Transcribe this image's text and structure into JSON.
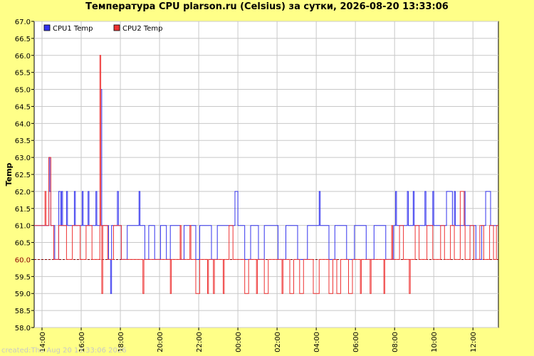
{
  "title": "Температура CPU plarson.ru (Celsius) за сутки, 2026-08-20 13:33:06",
  "footer": "created:Thu Aug 20 13:33:06 2026",
  "colors": {
    "background": "#ffff88",
    "plot_bg": "#ffffff",
    "grid": "#c8c8c8",
    "cpu1": "#3333ee",
    "cpu2": "#ee3333",
    "baseline": "#8b0000",
    "axis_text": "#000000"
  },
  "chart_data": {
    "type": "line",
    "ylabel": "Temp",
    "ylim": [
      58.0,
      67.0
    ],
    "yticks": [
      "58.0",
      "58.5",
      "59.0",
      "59.5",
      "60.0",
      "60.5",
      "61.0",
      "61.5",
      "62.0",
      "62.5",
      "63.0",
      "63.5",
      "64.0",
      "64.5",
      "65.0",
      "65.5",
      "66.0",
      "66.5",
      "67.0"
    ],
    "xrange_hours": [
      13.6,
      37.3
    ],
    "xticks": [
      {
        "label": "14:00",
        "h": 14
      },
      {
        "label": "16:00",
        "h": 16
      },
      {
        "label": "18:00",
        "h": 18
      },
      {
        "label": "20:00",
        "h": 20
      },
      {
        "label": "22:00",
        "h": 22
      },
      {
        "label": "00:00",
        "h": 24
      },
      {
        "label": "02:00",
        "h": 26
      },
      {
        "label": "04:00",
        "h": 28
      },
      {
        "label": "06:00",
        "h": 30
      },
      {
        "label": "08:00",
        "h": 32
      },
      {
        "label": "10:00",
        "h": 34
      },
      {
        "label": "12:00",
        "h": 36
      }
    ],
    "grid": true,
    "legend": "top-left",
    "baseline_value": 60.0,
    "series": [
      {
        "name": "CPU1 Temp",
        "color": "#3333ee",
        "points": [
          [
            13.6,
            61
          ],
          [
            14.3,
            61
          ],
          [
            14.35,
            63
          ],
          [
            14.4,
            62
          ],
          [
            14.45,
            61
          ],
          [
            14.6,
            61
          ],
          [
            14.65,
            60
          ],
          [
            14.8,
            60
          ],
          [
            14.85,
            62
          ],
          [
            14.95,
            61
          ],
          [
            15.0,
            62
          ],
          [
            15.05,
            61
          ],
          [
            15.2,
            61
          ],
          [
            15.25,
            62
          ],
          [
            15.3,
            61
          ],
          [
            15.6,
            61
          ],
          [
            15.65,
            62
          ],
          [
            15.7,
            61
          ],
          [
            16.0,
            61
          ],
          [
            16.05,
            62
          ],
          [
            16.1,
            61
          ],
          [
            16.3,
            61
          ],
          [
            16.35,
            62
          ],
          [
            16.4,
            61
          ],
          [
            16.7,
            61
          ],
          [
            16.75,
            62
          ],
          [
            16.8,
            61
          ],
          [
            16.95,
            61
          ],
          [
            17.0,
            65
          ],
          [
            17.05,
            61
          ],
          [
            17.3,
            61
          ],
          [
            17.4,
            60
          ],
          [
            17.5,
            59
          ],
          [
            17.55,
            61
          ],
          [
            17.8,
            61
          ],
          [
            17.85,
            62
          ],
          [
            17.9,
            61
          ],
          [
            18.0,
            61
          ],
          [
            18.05,
            60
          ],
          [
            18.3,
            60
          ],
          [
            18.35,
            61
          ],
          [
            18.9,
            61
          ],
          [
            18.95,
            62
          ],
          [
            19.0,
            61
          ],
          [
            19.2,
            61
          ],
          [
            19.25,
            60
          ],
          [
            19.4,
            60
          ],
          [
            19.45,
            61
          ],
          [
            19.7,
            61
          ],
          [
            19.75,
            60
          ],
          [
            20.0,
            60
          ],
          [
            20.05,
            61
          ],
          [
            20.3,
            61
          ],
          [
            20.35,
            60
          ],
          [
            20.5,
            60
          ],
          [
            20.55,
            61
          ],
          [
            21.0,
            61
          ],
          [
            21.05,
            60
          ],
          [
            21.2,
            60
          ],
          [
            21.25,
            61
          ],
          [
            21.8,
            61
          ],
          [
            21.85,
            60
          ],
          [
            22.0,
            60
          ],
          [
            22.05,
            61
          ],
          [
            22.6,
            61
          ],
          [
            22.65,
            60
          ],
          [
            22.9,
            60
          ],
          [
            22.95,
            61
          ],
          [
            23.8,
            61
          ],
          [
            23.85,
            62
          ],
          [
            23.95,
            62
          ],
          [
            24.0,
            61
          ],
          [
            24.3,
            61
          ],
          [
            24.35,
            60
          ],
          [
            24.6,
            60
          ],
          [
            24.65,
            61
          ],
          [
            25.0,
            61
          ],
          [
            25.05,
            60
          ],
          [
            25.3,
            60
          ],
          [
            25.35,
            61
          ],
          [
            26.0,
            61
          ],
          [
            26.05,
            60
          ],
          [
            26.4,
            60
          ],
          [
            26.45,
            61
          ],
          [
            27.0,
            61
          ],
          [
            27.05,
            60
          ],
          [
            27.5,
            60
          ],
          [
            27.55,
            61
          ],
          [
            28.1,
            61
          ],
          [
            28.15,
            62
          ],
          [
            28.2,
            61
          ],
          [
            28.6,
            61
          ],
          [
            28.65,
            60
          ],
          [
            28.9,
            60
          ],
          [
            28.95,
            61
          ],
          [
            29.5,
            61
          ],
          [
            29.55,
            60
          ],
          [
            29.9,
            60
          ],
          [
            29.95,
            61
          ],
          [
            30.5,
            61
          ],
          [
            30.55,
            60
          ],
          [
            30.9,
            60
          ],
          [
            30.95,
            61
          ],
          [
            31.5,
            61
          ],
          [
            31.55,
            60
          ],
          [
            31.9,
            60
          ],
          [
            31.95,
            61
          ],
          [
            32.0,
            61
          ],
          [
            32.05,
            62
          ],
          [
            32.1,
            61
          ],
          [
            32.6,
            61
          ],
          [
            32.65,
            62
          ],
          [
            32.7,
            61
          ],
          [
            32.9,
            61
          ],
          [
            32.95,
            62
          ],
          [
            33.0,
            61
          ],
          [
            33.5,
            61
          ],
          [
            33.55,
            62
          ],
          [
            33.6,
            61
          ],
          [
            33.9,
            61
          ],
          [
            33.95,
            62
          ],
          [
            34.0,
            61
          ],
          [
            34.6,
            61
          ],
          [
            34.65,
            62
          ],
          [
            34.9,
            62
          ],
          [
            34.95,
            61
          ],
          [
            35.0,
            61
          ],
          [
            35.05,
            62
          ],
          [
            35.1,
            61
          ],
          [
            35.5,
            61
          ],
          [
            35.55,
            62
          ],
          [
            35.6,
            61
          ],
          [
            36.1,
            61
          ],
          [
            36.15,
            60
          ],
          [
            36.4,
            60
          ],
          [
            36.45,
            61
          ],
          [
            36.6,
            61
          ],
          [
            36.65,
            62
          ],
          [
            36.85,
            62
          ],
          [
            36.9,
            61
          ],
          [
            37.3,
            61
          ]
        ]
      },
      {
        "name": "CPU2 Temp",
        "color": "#ee3333",
        "points": [
          [
            13.6,
            61
          ],
          [
            14.1,
            61
          ],
          [
            14.15,
            62
          ],
          [
            14.2,
            61
          ],
          [
            14.3,
            61
          ],
          [
            14.35,
            63
          ],
          [
            14.45,
            61
          ],
          [
            14.55,
            61
          ],
          [
            14.6,
            60
          ],
          [
            14.8,
            60
          ],
          [
            14.85,
            61
          ],
          [
            15.2,
            61
          ],
          [
            15.25,
            60
          ],
          [
            15.5,
            60
          ],
          [
            15.55,
            61
          ],
          [
            15.9,
            61
          ],
          [
            15.95,
            60
          ],
          [
            16.2,
            60
          ],
          [
            16.25,
            61
          ],
          [
            16.5,
            61
          ],
          [
            16.55,
            60
          ],
          [
            16.9,
            60
          ],
          [
            16.95,
            66
          ],
          [
            17.0,
            61
          ],
          [
            17.05,
            59
          ],
          [
            17.1,
            61
          ],
          [
            17.3,
            61
          ],
          [
            17.35,
            60
          ],
          [
            17.6,
            60
          ],
          [
            17.65,
            61
          ],
          [
            18.0,
            61
          ],
          [
            18.05,
            60
          ],
          [
            19.1,
            60
          ],
          [
            19.15,
            59
          ],
          [
            19.2,
            60
          ],
          [
            20.5,
            60
          ],
          [
            20.55,
            59
          ],
          [
            20.6,
            60
          ],
          [
            21.0,
            60
          ],
          [
            21.05,
            61
          ],
          [
            21.1,
            60
          ],
          [
            21.5,
            60
          ],
          [
            21.55,
            61
          ],
          [
            21.6,
            60
          ],
          [
            21.8,
            60
          ],
          [
            21.85,
            59
          ],
          [
            22.0,
            59
          ],
          [
            22.05,
            60
          ],
          [
            22.4,
            60
          ],
          [
            22.45,
            59
          ],
          [
            22.5,
            60
          ],
          [
            22.7,
            60
          ],
          [
            22.75,
            59
          ],
          [
            22.8,
            60
          ],
          [
            23.2,
            60
          ],
          [
            23.25,
            59
          ],
          [
            23.3,
            60
          ],
          [
            23.5,
            60
          ],
          [
            23.55,
            61
          ],
          [
            23.7,
            61
          ],
          [
            23.75,
            60
          ],
          [
            24.3,
            60
          ],
          [
            24.35,
            59
          ],
          [
            24.5,
            59
          ],
          [
            24.55,
            60
          ],
          [
            24.9,
            60
          ],
          [
            24.95,
            59
          ],
          [
            25.0,
            60
          ],
          [
            25.3,
            60
          ],
          [
            25.35,
            59
          ],
          [
            25.5,
            59
          ],
          [
            25.55,
            60
          ],
          [
            26.2,
            60
          ],
          [
            26.25,
            59
          ],
          [
            26.3,
            60
          ],
          [
            26.6,
            60
          ],
          [
            26.65,
            59
          ],
          [
            26.8,
            59
          ],
          [
            26.85,
            60
          ],
          [
            27.1,
            60
          ],
          [
            27.15,
            59
          ],
          [
            27.3,
            59
          ],
          [
            27.35,
            60
          ],
          [
            27.8,
            60
          ],
          [
            27.85,
            59
          ],
          [
            28.1,
            59
          ],
          [
            28.15,
            60
          ],
          [
            28.6,
            60
          ],
          [
            28.65,
            59
          ],
          [
            28.8,
            59
          ],
          [
            28.85,
            60
          ],
          [
            29.0,
            60
          ],
          [
            29.05,
            59
          ],
          [
            29.2,
            59
          ],
          [
            29.25,
            60
          ],
          [
            29.6,
            60
          ],
          [
            29.65,
            59
          ],
          [
            29.8,
            59
          ],
          [
            29.85,
            60
          ],
          [
            30.2,
            60
          ],
          [
            30.25,
            59
          ],
          [
            30.3,
            60
          ],
          [
            30.7,
            60
          ],
          [
            30.75,
            59
          ],
          [
            30.8,
            60
          ],
          [
            31.4,
            60
          ],
          [
            31.45,
            59
          ],
          [
            31.5,
            60
          ],
          [
            31.8,
            60
          ],
          [
            31.85,
            61
          ],
          [
            31.9,
            60
          ],
          [
            32.2,
            60
          ],
          [
            32.25,
            61
          ],
          [
            32.4,
            61
          ],
          [
            32.45,
            60
          ],
          [
            32.7,
            60
          ],
          [
            32.75,
            59
          ],
          [
            32.8,
            60
          ],
          [
            33.0,
            60
          ],
          [
            33.05,
            61
          ],
          [
            33.2,
            61
          ],
          [
            33.25,
            60
          ],
          [
            33.6,
            60
          ],
          [
            33.65,
            61
          ],
          [
            33.9,
            61
          ],
          [
            33.95,
            60
          ],
          [
            34.3,
            60
          ],
          [
            34.35,
            61
          ],
          [
            34.5,
            61
          ],
          [
            34.55,
            60
          ],
          [
            34.8,
            60
          ],
          [
            34.85,
            61
          ],
          [
            35.0,
            61
          ],
          [
            35.05,
            60
          ],
          [
            35.3,
            60
          ],
          [
            35.35,
            62
          ],
          [
            35.5,
            62
          ],
          [
            35.55,
            61
          ],
          [
            35.6,
            60
          ],
          [
            35.8,
            60
          ],
          [
            35.85,
            61
          ],
          [
            36.0,
            61
          ],
          [
            36.05,
            60
          ],
          [
            36.3,
            60
          ],
          [
            36.35,
            61
          ],
          [
            36.5,
            61
          ],
          [
            36.55,
            60
          ],
          [
            36.8,
            60
          ],
          [
            36.85,
            61
          ],
          [
            37.0,
            61
          ],
          [
            37.05,
            60
          ],
          [
            37.15,
            60
          ],
          [
            37.2,
            61
          ],
          [
            37.3,
            61
          ]
        ]
      }
    ]
  }
}
